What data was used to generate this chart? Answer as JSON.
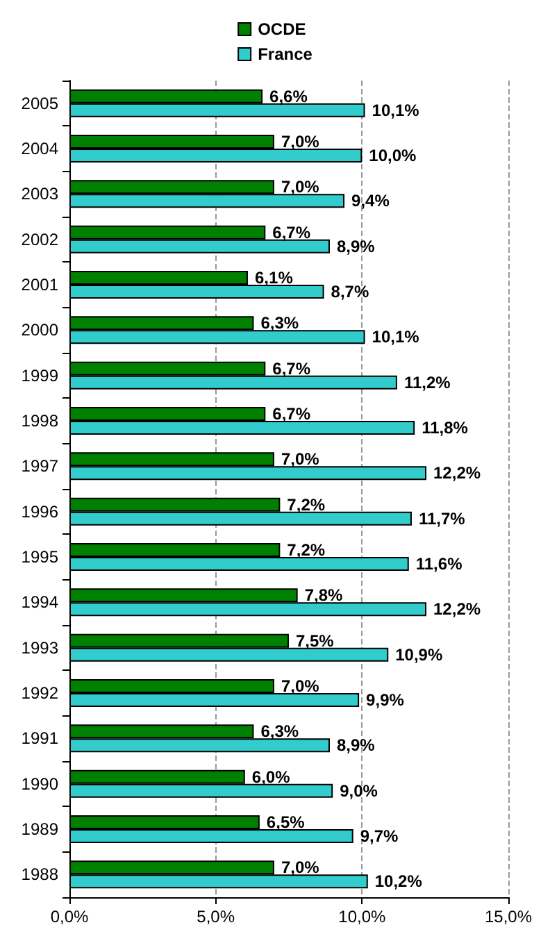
{
  "chart_data": {
    "type": "bar",
    "orientation": "horizontal",
    "categories": [
      "2005",
      "2004",
      "2003",
      "2002",
      "2001",
      "2000",
      "1999",
      "1998",
      "1997",
      "1996",
      "1995",
      "1994",
      "1993",
      "1992",
      "1991",
      "1990",
      "1989",
      "1988"
    ],
    "series": [
      {
        "name": "OCDE",
        "color": "#008000",
        "values": [
          6.6,
          7.0,
          7.0,
          6.7,
          6.1,
          6.3,
          6.7,
          6.7,
          7.0,
          7.2,
          7.2,
          7.8,
          7.5,
          7.0,
          6.3,
          6.0,
          6.5,
          7.0
        ],
        "value_labels": [
          "6,6%",
          "7,0%",
          "7,0%",
          "6,7%",
          "6,1%",
          "6,3%",
          "6,7%",
          "6,7%",
          "7,0%",
          "7,2%",
          "7,2%",
          "7,8%",
          "7,5%",
          "7,0%",
          "6,3%",
          "6,0%",
          "6,5%",
          "7,0%"
        ]
      },
      {
        "name": "France",
        "color": "#33cccc",
        "values": [
          10.1,
          10.0,
          9.4,
          8.9,
          8.7,
          10.1,
          11.2,
          11.8,
          12.2,
          11.7,
          11.6,
          12.2,
          10.9,
          9.9,
          8.9,
          9.0,
          9.7,
          10.2
        ],
        "value_labels": [
          "10,1%",
          "10,0%",
          "9,4%",
          "8,9%",
          "8,7%",
          "10,1%",
          "11,2%",
          "11,8%",
          "12,2%",
          "11,7%",
          "11,6%",
          "12,2%",
          "10,9%",
          "9,9%",
          "8,9%",
          "9,0%",
          "9,7%",
          "10,2%"
        ]
      }
    ],
    "xlim": [
      0,
      15
    ],
    "xticks": [
      {
        "value": 0,
        "label": "0,0%"
      },
      {
        "value": 5,
        "label": "5,0%"
      },
      {
        "value": 10,
        "label": "10,0%"
      },
      {
        "value": 15,
        "label": "15,0%"
      }
    ],
    "grid": "x",
    "legend": "top"
  }
}
